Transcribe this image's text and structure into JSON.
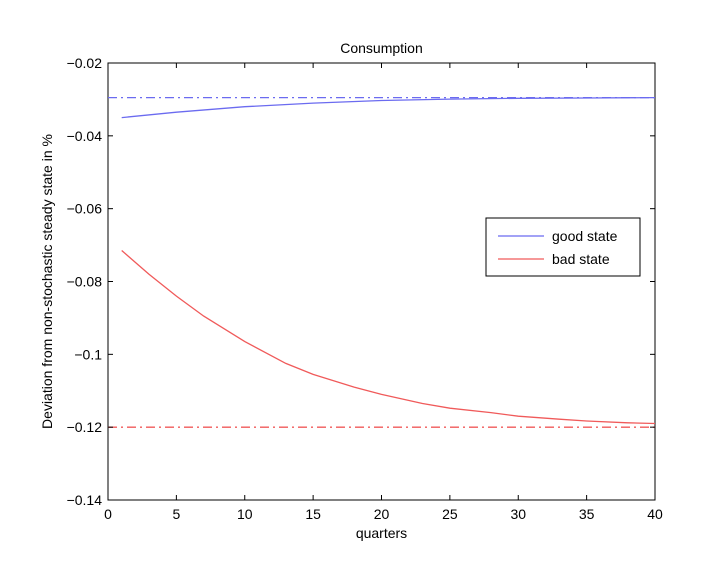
{
  "chart_data": {
    "type": "line",
    "title": "Consumption",
    "xlabel": "quarters",
    "ylabel": "Deviation from non-stochastic steady state in %",
    "xlim": [
      0,
      40
    ],
    "ylim": [
      -0.14,
      -0.02
    ],
    "xticks": [
      0,
      5,
      10,
      15,
      20,
      25,
      30,
      35,
      40
    ],
    "yticks": [
      -0.14,
      -0.12,
      -0.1,
      -0.08,
      -0.06,
      -0.04,
      -0.02
    ],
    "xtick_labels": [
      "0",
      "5",
      "10",
      "15",
      "20",
      "25",
      "30",
      "35",
      "40"
    ],
    "ytick_labels": [
      "−0.14",
      "−0.12",
      "−0.1",
      "−0.08",
      "−0.06",
      "−0.04",
      "−0.02"
    ],
    "grid": false,
    "legend_position": "right",
    "series": [
      {
        "name": "good state",
        "color": "#6b6bf0",
        "style": "solid",
        "x": [
          1,
          5,
          10,
          15,
          20,
          25,
          30,
          35,
          40
        ],
        "y": [
          -0.035,
          -0.0335,
          -0.032,
          -0.031,
          -0.0303,
          -0.0299,
          -0.0297,
          -0.0296,
          -0.0295
        ]
      },
      {
        "name": "bad state",
        "color": "#f05a5a",
        "style": "solid",
        "x": [
          1,
          3,
          5,
          7,
          10,
          13,
          15,
          18,
          20,
          23,
          25,
          28,
          30,
          33,
          35,
          38,
          40
        ],
        "y": [
          -0.0715,
          -0.078,
          -0.084,
          -0.0895,
          -0.0965,
          -0.1025,
          -0.1055,
          -0.109,
          -0.111,
          -0.1135,
          -0.1148,
          -0.116,
          -0.117,
          -0.1178,
          -0.1183,
          -0.1188,
          -0.119
        ]
      }
    ],
    "reference_lines": [
      {
        "y": -0.0295,
        "color": "#6b6bf0",
        "style": "dashdot"
      },
      {
        "y": -0.12,
        "color": "#f05a5a",
        "style": "dashdot"
      }
    ]
  }
}
